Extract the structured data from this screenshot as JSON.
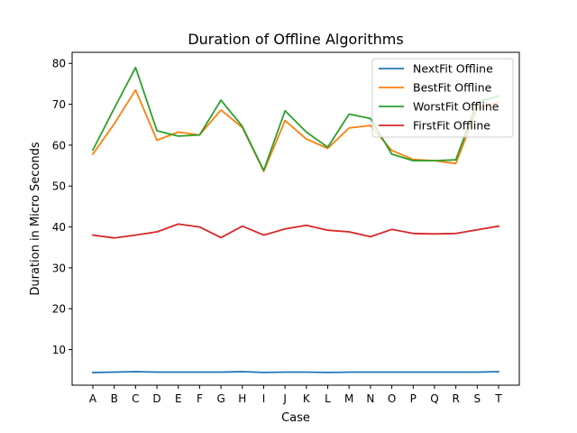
{
  "chart_data": {
    "type": "line",
    "title": "Duration of Offline Algorithms",
    "xlabel": "Case",
    "ylabel": "Duration in Micro Seconds",
    "categories": [
      "A",
      "B",
      "C",
      "D",
      "E",
      "F",
      "G",
      "H",
      "I",
      "J",
      "K",
      "L",
      "M",
      "N",
      "O",
      "P",
      "Q",
      "R",
      "S",
      "T"
    ],
    "ylim": [
      1.3,
      82.7
    ],
    "yticks": [
      10,
      20,
      30,
      40,
      50,
      60,
      70,
      80
    ],
    "grid": false,
    "legend_position": "top-right",
    "series": [
      {
        "name": "NextFit Offline",
        "color": "#1f77b4",
        "values": [
          4.4,
          4.5,
          4.6,
          4.5,
          4.5,
          4.5,
          4.5,
          4.6,
          4.4,
          4.5,
          4.5,
          4.4,
          4.5,
          4.5,
          4.5,
          4.5,
          4.5,
          4.5,
          4.5,
          4.6
        ]
      },
      {
        "name": "BestFit Offline",
        "color": "#ff7f0e",
        "values": [
          57.8,
          65.2,
          73.5,
          61.2,
          63.2,
          62.5,
          68.6,
          64.3,
          53.6,
          66.0,
          61.5,
          59.2,
          64.2,
          64.8,
          58.7,
          56.5,
          56.2,
          55.5,
          69.0,
          70.5
        ]
      },
      {
        "name": "WorstFit Offline",
        "color": "#2ca02c",
        "values": [
          58.8,
          69.0,
          79.0,
          63.5,
          62.2,
          62.5,
          71.0,
          64.6,
          53.8,
          68.4,
          63.2,
          59.5,
          67.6,
          66.5,
          57.8,
          56.2,
          56.2,
          56.4,
          70.5,
          72.0
        ]
      },
      {
        "name": "FirstFit Offline",
        "color": "#d62728",
        "values": [
          38.0,
          37.3,
          38.0,
          38.8,
          40.7,
          40.0,
          37.4,
          40.2,
          38.0,
          39.5,
          40.4,
          39.2,
          38.8,
          37.6,
          39.4,
          38.4,
          38.3,
          38.4,
          39.3,
          40.2
        ]
      }
    ]
  }
}
